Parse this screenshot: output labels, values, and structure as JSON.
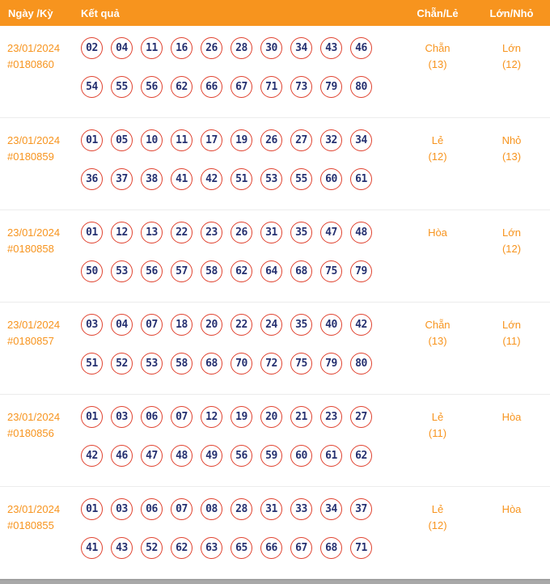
{
  "header": {
    "col_date": "Ngày /Kỳ",
    "col_result": "Kết quả",
    "col_parity": "Chẵn/Lẻ",
    "col_size": "Lớn/Nhỏ"
  },
  "colors": {
    "header_bg": "#F7941E",
    "accent_orange": "#F7941E",
    "ball_border": "#E0422F",
    "ball_number": "#253070"
  },
  "rows": [
    {
      "date": "23/01/2024",
      "id": "#0180860",
      "line1": [
        "02",
        "04",
        "11",
        "16",
        "26",
        "28",
        "30",
        "34",
        "43",
        "46"
      ],
      "line2": [
        "54",
        "55",
        "56",
        "62",
        "66",
        "67",
        "71",
        "73",
        "79",
        "80"
      ],
      "parity": "Chẵn",
      "parity_count": "(13)",
      "size": "Lớn",
      "size_count": "(12)"
    },
    {
      "date": "23/01/2024",
      "id": "#0180859",
      "line1": [
        "01",
        "05",
        "10",
        "11",
        "17",
        "19",
        "26",
        "27",
        "32",
        "34"
      ],
      "line2": [
        "36",
        "37",
        "38",
        "41",
        "42",
        "51",
        "53",
        "55",
        "60",
        "61"
      ],
      "parity": "Lẻ",
      "parity_count": "(12)",
      "size": "Nhỏ",
      "size_count": "(13)"
    },
    {
      "date": "23/01/2024",
      "id": "#0180858",
      "line1": [
        "01",
        "12",
        "13",
        "22",
        "23",
        "26",
        "31",
        "35",
        "47",
        "48"
      ],
      "line2": [
        "50",
        "53",
        "56",
        "57",
        "58",
        "62",
        "64",
        "68",
        "75",
        "79"
      ],
      "parity": "Hòa",
      "parity_count": "",
      "size": "Lớn",
      "size_count": "(12)"
    },
    {
      "date": "23/01/2024",
      "id": "#0180857",
      "line1": [
        "03",
        "04",
        "07",
        "18",
        "20",
        "22",
        "24",
        "35",
        "40",
        "42"
      ],
      "line2": [
        "51",
        "52",
        "53",
        "58",
        "68",
        "70",
        "72",
        "75",
        "79",
        "80"
      ],
      "parity": "Chẵn",
      "parity_count": "(13)",
      "size": "Lớn",
      "size_count": "(11)"
    },
    {
      "date": "23/01/2024",
      "id": "#0180856",
      "line1": [
        "01",
        "03",
        "06",
        "07",
        "12",
        "19",
        "20",
        "21",
        "23",
        "27"
      ],
      "line2": [
        "42",
        "46",
        "47",
        "48",
        "49",
        "56",
        "59",
        "60",
        "61",
        "62"
      ],
      "parity": "Lẻ",
      "parity_count": "(11)",
      "size": "Hòa",
      "size_count": ""
    },
    {
      "date": "23/01/2024",
      "id": "#0180855",
      "line1": [
        "01",
        "03",
        "06",
        "07",
        "08",
        "28",
        "31",
        "33",
        "34",
        "37"
      ],
      "line2": [
        "41",
        "43",
        "52",
        "62",
        "63",
        "65",
        "66",
        "67",
        "68",
        "71"
      ],
      "parity": "Lẻ",
      "parity_count": "(12)",
      "size": "Hòa",
      "size_count": ""
    }
  ]
}
